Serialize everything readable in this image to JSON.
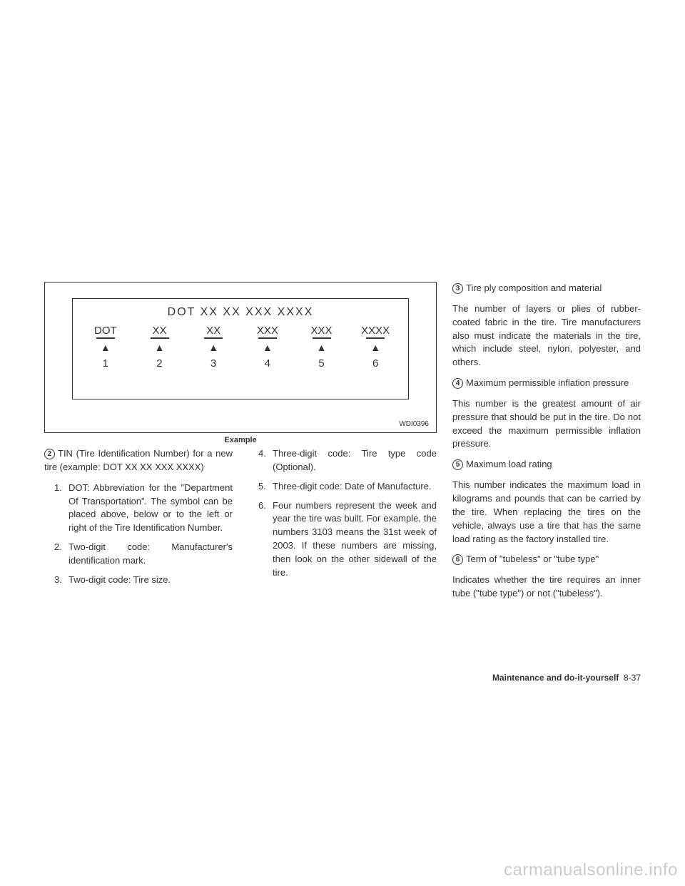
{
  "diagram": {
    "title_line": "DOT  XX  XX  XXX  XXXX",
    "segments": [
      {
        "text": "DOT",
        "num": "1"
      },
      {
        "text": "XX",
        "num": "2"
      },
      {
        "text": "XX",
        "num": "3"
      },
      {
        "text": "XXX",
        "num": "4"
      },
      {
        "text": "XXX",
        "num": "5"
      },
      {
        "text": "XXXX",
        "num": "6"
      }
    ],
    "fig_code": "WDI0396",
    "example_label": "Example"
  },
  "col1": {
    "circled": "2",
    "intro": "TIN (Tire Identification Number) for a new tire (example: DOT XX XX XXX XXXX)",
    "items": [
      {
        "n": "1.",
        "t": "DOT: Abbreviation for the \"Department Of Transportation\". The symbol can be placed above, below or to the left or right of the Tire Identification Number."
      },
      {
        "n": "2.",
        "t": "Two-digit code: Manufacturer's identification mark."
      },
      {
        "n": "3.",
        "t": "Two-digit code: Tire size."
      }
    ]
  },
  "col2": {
    "items": [
      {
        "n": "4.",
        "t": "Three-digit code: Tire type code (Optional)."
      },
      {
        "n": "5.",
        "t": "Three-digit code: Date of Manufacture."
      },
      {
        "n": "6.",
        "t": "Four numbers represent the week and year the tire was built. For example, the numbers 3103 means the 31st week of 2003. If these numbers are missing, then look on the other sidewall of the tire."
      }
    ]
  },
  "col3": {
    "blocks": [
      {
        "circled": "3",
        "title": "Tire ply composition and material",
        "body": "The number of layers or plies of rubber-coated fabric in the tire. Tire manufacturers also must indicate the materials in the tire, which include steel, nylon, polyester, and others."
      },
      {
        "circled": "4",
        "title": "Maximum permissible inflation pressure",
        "body": "This number is the greatest amount of air pressure that should be put in the tire. Do not exceed the maximum permissible inflation pressure."
      },
      {
        "circled": "5",
        "title": "Maximum load rating",
        "body": "This number indicates the maximum load in kilograms and pounds that can be carried by the tire. When replacing the tires on the vehicle, always use a tire that has the same load rating as the factory installed tire."
      },
      {
        "circled": "6",
        "title": "Term of \"tubeless\" or \"tube type\"",
        "body": "Indicates whether the tire requires an inner tube (\"tube type\") or not (\"tubeless\")."
      }
    ]
  },
  "footer": {
    "section": "Maintenance and do-it-yourself",
    "page": "8-37"
  },
  "watermark": "carmanualsonline.info"
}
